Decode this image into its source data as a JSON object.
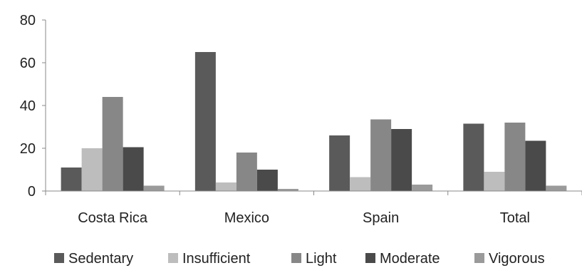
{
  "chart_data": {
    "type": "bar",
    "title": "",
    "xlabel": "",
    "ylabel": "",
    "ylim": [
      0,
      80
    ],
    "yticks": [
      0,
      20,
      40,
      60,
      80
    ],
    "grid": false,
    "legend_position": "bottom",
    "categories": [
      "Costa Rica",
      "Mexico",
      "Spain",
      "Total"
    ],
    "series": [
      {
        "name": "Sedentary",
        "color": "#5a5a5a",
        "values": [
          11,
          65,
          26,
          31.5
        ]
      },
      {
        "name": "Insufficient",
        "color": "#bdbdbd",
        "values": [
          20,
          4,
          6.5,
          9
        ]
      },
      {
        "name": "Light",
        "color": "#878787",
        "values": [
          44,
          18,
          33.5,
          32
        ]
      },
      {
        "name": "Moderate",
        "color": "#4a4a4a",
        "values": [
          20.5,
          10,
          29,
          23.5
        ]
      },
      {
        "name": "Vigorous",
        "color": "#9a9a9a",
        "values": [
          2.5,
          1,
          3,
          2.5
        ]
      }
    ]
  }
}
